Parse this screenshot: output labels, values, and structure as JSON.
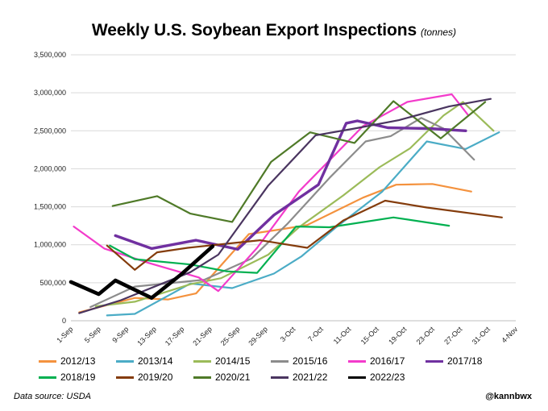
{
  "chart_data": {
    "type": "line",
    "title": "Weekly U.S. Soybean Export Inspections",
    "unit_label": "(tonnes)",
    "ylim": [
      0,
      3500000
    ],
    "ytick_values": [
      0,
      500000,
      1000000,
      1500000,
      2000000,
      2500000,
      3000000,
      3500000
    ],
    "ytick_labels": [
      "0",
      "500,000",
      "1,000,000",
      "1,500,000",
      "2,000,000",
      "2,500,000",
      "3,000,000",
      "3,500,000"
    ],
    "categories": [
      "1-Sep",
      "5-Sep",
      "9-Sep",
      "13-Sep",
      "17-Sep",
      "21-Sep",
      "25-Sep",
      "29-Sep",
      "3-Oct",
      "7-Oct",
      "11-Oct",
      "15-Oct",
      "19-Oct",
      "23-Oct",
      "27-Oct",
      "31-Oct",
      "4-Nov"
    ],
    "grid": true,
    "legend_position": "bottom",
    "series": [
      {
        "name": "2012/13",
        "color": "#F4923E",
        "width": 2.2,
        "points": [
          [
            0.3,
            110000
          ],
          [
            2.3,
            300000
          ],
          [
            3.5,
            280000
          ],
          [
            4.5,
            360000
          ],
          [
            6.4,
            1140000
          ],
          [
            7.5,
            1200000
          ],
          [
            8.5,
            1260000
          ],
          [
            10.5,
            1620000
          ],
          [
            11.7,
            1790000
          ],
          [
            13,
            1800000
          ],
          [
            14.4,
            1700000
          ]
        ]
      },
      {
        "name": "2013/14",
        "color": "#4BACC6",
        "width": 2.2,
        "points": [
          [
            1.3,
            70000
          ],
          [
            2.3,
            90000
          ],
          [
            4.3,
            490000
          ],
          [
            5.8,
            430000
          ],
          [
            7.3,
            620000
          ],
          [
            8.3,
            850000
          ],
          [
            9.5,
            1220000
          ],
          [
            11.2,
            1700000
          ],
          [
            12.8,
            2360000
          ],
          [
            14.2,
            2260000
          ],
          [
            15.4,
            2480000
          ]
        ]
      },
      {
        "name": "2014/15",
        "color": "#9BBB59",
        "width": 2.2,
        "points": [
          [
            0.9,
            190000
          ],
          [
            2.3,
            250000
          ],
          [
            4.3,
            480000
          ],
          [
            5.4,
            560000
          ],
          [
            7.1,
            870000
          ],
          [
            8.2,
            1230000
          ],
          [
            9.8,
            1650000
          ],
          [
            11.1,
            2020000
          ],
          [
            12.2,
            2270000
          ],
          [
            13.4,
            2700000
          ],
          [
            14.1,
            2880000
          ],
          [
            15.2,
            2500000
          ]
        ]
      },
      {
        "name": "2015/16",
        "color": "#8C8C8C",
        "width": 2.2,
        "points": [
          [
            0.7,
            180000
          ],
          [
            2.3,
            450000
          ],
          [
            4.8,
            540000
          ],
          [
            6.5,
            820000
          ],
          [
            7.8,
            1280000
          ],
          [
            9.3,
            1880000
          ],
          [
            10.6,
            2360000
          ],
          [
            11.5,
            2430000
          ],
          [
            12.6,
            2670000
          ],
          [
            13.4,
            2530000
          ],
          [
            14.5,
            2120000
          ]
        ]
      },
      {
        "name": "2016/17",
        "color": "#F33BCB",
        "width": 2.2,
        "points": [
          [
            0.1,
            1240000
          ],
          [
            1.2,
            950000
          ],
          [
            2.8,
            760000
          ],
          [
            4.6,
            570000
          ],
          [
            5.3,
            390000
          ],
          [
            6.7,
            960000
          ],
          [
            8.2,
            1700000
          ],
          [
            10.5,
            2560000
          ],
          [
            11.4,
            2740000
          ],
          [
            12.1,
            2880000
          ],
          [
            13.7,
            2980000
          ],
          [
            14.3,
            2700000
          ]
        ]
      },
      {
        "name": "2017/18",
        "color": "#7030A0",
        "width": 3.4,
        "points": [
          [
            1.6,
            1120000
          ],
          [
            2.9,
            950000
          ],
          [
            4.5,
            1060000
          ],
          [
            6,
            940000
          ],
          [
            7.3,
            1390000
          ],
          [
            8.9,
            1790000
          ],
          [
            9.9,
            2600000
          ],
          [
            10.3,
            2630000
          ],
          [
            11.4,
            2540000
          ],
          [
            12.9,
            2530000
          ],
          [
            14.2,
            2500000
          ]
        ]
      },
      {
        "name": "2018/19",
        "color": "#00B050",
        "width": 2.2,
        "points": [
          [
            1.4,
            990000
          ],
          [
            2.3,
            810000
          ],
          [
            4.3,
            740000
          ],
          [
            5.6,
            650000
          ],
          [
            6.7,
            630000
          ],
          [
            8.1,
            1240000
          ],
          [
            9.3,
            1230000
          ],
          [
            11.6,
            1360000
          ],
          [
            13.6,
            1250000
          ]
        ]
      },
      {
        "name": "2019/20",
        "color": "#843C0C",
        "width": 2.2,
        "points": [
          [
            1.3,
            990000
          ],
          [
            2.3,
            670000
          ],
          [
            3.1,
            900000
          ],
          [
            4.2,
            960000
          ],
          [
            6.8,
            1060000
          ],
          [
            8.5,
            960000
          ],
          [
            9.8,
            1320000
          ],
          [
            11.3,
            1580000
          ],
          [
            12.8,
            1490000
          ],
          [
            15.5,
            1360000
          ]
        ]
      },
      {
        "name": "2020/21",
        "color": "#4F7A28",
        "width": 2.2,
        "points": [
          [
            1.5,
            1510000
          ],
          [
            3.1,
            1640000
          ],
          [
            4.3,
            1410000
          ],
          [
            5.8,
            1300000
          ],
          [
            7.2,
            2090000
          ],
          [
            8.6,
            2480000
          ],
          [
            10.2,
            2340000
          ],
          [
            11.6,
            2890000
          ],
          [
            13.3,
            2400000
          ],
          [
            14.9,
            2880000
          ]
        ]
      },
      {
        "name": "2021/22",
        "color": "#4A3560",
        "width": 2.2,
        "points": [
          [
            0.3,
            100000
          ],
          [
            1.8,
            270000
          ],
          [
            4.3,
            640000
          ],
          [
            5.3,
            870000
          ],
          [
            7.1,
            1780000
          ],
          [
            8.8,
            2440000
          ],
          [
            10.2,
            2530000
          ],
          [
            11.8,
            2640000
          ],
          [
            13.6,
            2820000
          ],
          [
            15.1,
            2920000
          ]
        ]
      },
      {
        "name": "2022/23",
        "color": "#000000",
        "width": 4.6,
        "points": [
          [
            0,
            510000
          ],
          [
            1,
            350000
          ],
          [
            1.6,
            530000
          ],
          [
            2.9,
            300000
          ],
          [
            4,
            620000
          ],
          [
            5.1,
            980000
          ]
        ]
      }
    ]
  },
  "title": {
    "main": "Weekly U.S. Soybean Export Inspections",
    "unit": "(tonnes)"
  },
  "footer": {
    "source": "Data source: USDA",
    "handle": "@kannbwx"
  }
}
